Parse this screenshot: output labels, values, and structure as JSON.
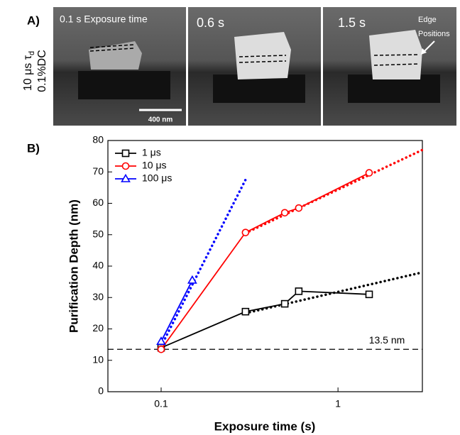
{
  "panel_a": {
    "label": "A)",
    "side_label": {
      "line1": "10 μs τ",
      "subscript": "d",
      "line2": "0.1%DC"
    },
    "images": [
      {
        "caption": "0.1 s Exposure time"
      },
      {
        "caption": "0.6 s"
      },
      {
        "caption": "1.5 s",
        "note": [
          "Edge",
          "Positions"
        ]
      }
    ],
    "scale_bar": "400 nm"
  },
  "chart_data": {
    "type": "line",
    "panel_label": "B)",
    "x_label": "Exposure time (s)",
    "y_label": "Purification Depth (nm)",
    "xscale": "log",
    "xlim": [
      0.05,
      3
    ],
    "xticks": [
      0.1,
      1
    ],
    "ylim": [
      0,
      80
    ],
    "yticks": [
      0,
      10,
      20,
      30,
      40,
      50,
      60,
      70,
      80
    ],
    "legend": "upper left",
    "series": [
      {
        "name": "1 μs",
        "color": "#000000",
        "marker": "square",
        "x": [
          0.1,
          0.3,
          0.5,
          0.6,
          1.5
        ],
        "values": [
          14,
          25.5,
          28,
          32,
          31
        ]
      },
      {
        "name": "10 μs",
        "color": "#ff0000",
        "marker": "circle",
        "x": [
          0.1,
          0.3,
          0.5,
          0.6,
          1.5
        ],
        "values": [
          13.5,
          50.7,
          57,
          58.5,
          69.7
        ]
      },
      {
        "name": "100 μs",
        "color": "#0000ff",
        "marker": "triangle",
        "x": [
          0.1,
          0.15
        ],
        "values": [
          16,
          35.5
        ]
      },
      {
        "color": "#000000",
        "style": "dotted",
        "x": [
          0.3,
          3
        ],
        "values": [
          25,
          38
        ]
      },
      {
        "color": "#ff0000",
        "style": "dotted",
        "x": [
          0.3,
          3
        ],
        "values": [
          50.5,
          77
        ]
      },
      {
        "color": "#0000ff",
        "style": "dotted",
        "x": [
          0.1,
          0.3
        ],
        "values": [
          14.5,
          67.5
        ]
      }
    ],
    "hline": {
      "value": 13.5,
      "label": "13.5 nm"
    }
  }
}
